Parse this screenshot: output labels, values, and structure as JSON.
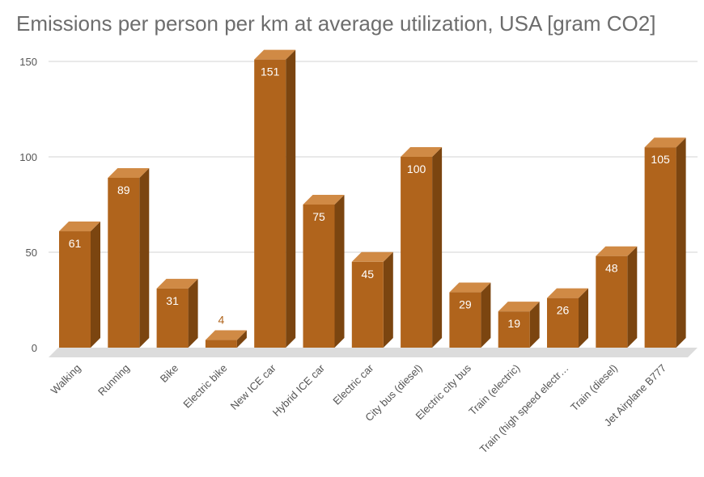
{
  "title": "Emissions per person per km at average utilization, USA [gram CO2]",
  "colors": {
    "bar_front": "#b0641c",
    "bar_side": "#7b4510",
    "bar_top": "#d08a45",
    "floor": "#dcdcdc",
    "gridline": "#e2e2e2",
    "value_outside": "#b0641c"
  },
  "chart_data": {
    "type": "bar",
    "style": "3d",
    "categories": [
      "Walking",
      "Running",
      "Bike",
      "Electric bike",
      "New ICE car",
      "Hybrid ICE car",
      "Electric car",
      "City bus (diesel)",
      "Electric city bus",
      "Train (electric)",
      "Train (high speed electr…",
      "Train (diesel)",
      "Jet Airplane B777"
    ],
    "values": [
      61,
      89,
      31,
      4,
      151,
      75,
      45,
      100,
      29,
      19,
      26,
      48,
      105
    ],
    "data_labels": [
      "61",
      "89",
      "31",
      "4",
      "151",
      "75",
      "45",
      "100",
      "29",
      "19",
      "26",
      "48",
      "105"
    ],
    "yticks": [
      "0",
      "50",
      "100",
      "150"
    ],
    "ylim": [
      0,
      150
    ],
    "grid": true,
    "legend": "none",
    "xlabel": "",
    "ylabel": ""
  }
}
